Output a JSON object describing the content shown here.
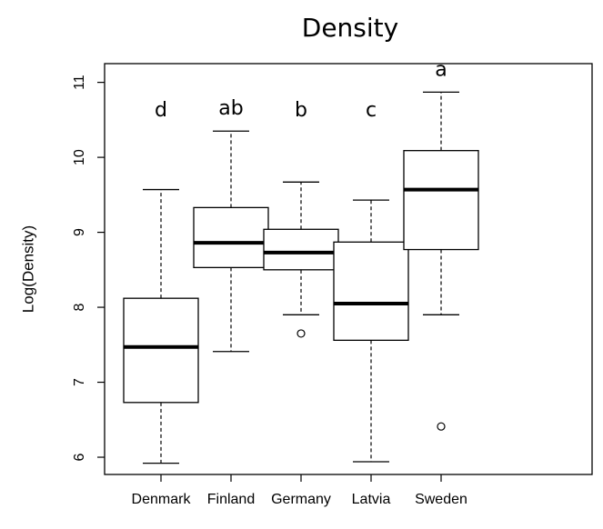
{
  "chart_data": {
    "type": "box",
    "title": "Density",
    "y_label": "Log(Density)",
    "categories": [
      "Denmark",
      "Finland",
      "Germany",
      "Latvia",
      "Sweden"
    ],
    "boxes": [
      {
        "min": 5.92,
        "q1": 6.73,
        "median": 7.47,
        "q3": 8.12,
        "max": 9.57,
        "outliers": []
      },
      {
        "min": 7.41,
        "q1": 8.53,
        "median": 8.86,
        "q3": 9.33,
        "max": 10.35,
        "outliers": []
      },
      {
        "min": 7.9,
        "q1": 8.5,
        "median": 8.73,
        "q3": 9.04,
        "max": 9.67,
        "outliers": [
          7.65
        ]
      },
      {
        "min": 5.94,
        "q1": 7.56,
        "median": 8.05,
        "q3": 8.87,
        "max": 9.43,
        "outliers": []
      },
      {
        "min": 7.9,
        "q1": 8.77,
        "median": 9.57,
        "q3": 10.09,
        "max": 10.87,
        "outliers": [
          6.41
        ]
      }
    ],
    "annotations": [
      "d",
      "ab",
      "b",
      "c",
      "a"
    ],
    "ylim": [
      5.77,
      11.25
    ],
    "yticks": [
      6,
      7,
      8,
      9,
      10,
      11
    ],
    "color": "#000000"
  }
}
